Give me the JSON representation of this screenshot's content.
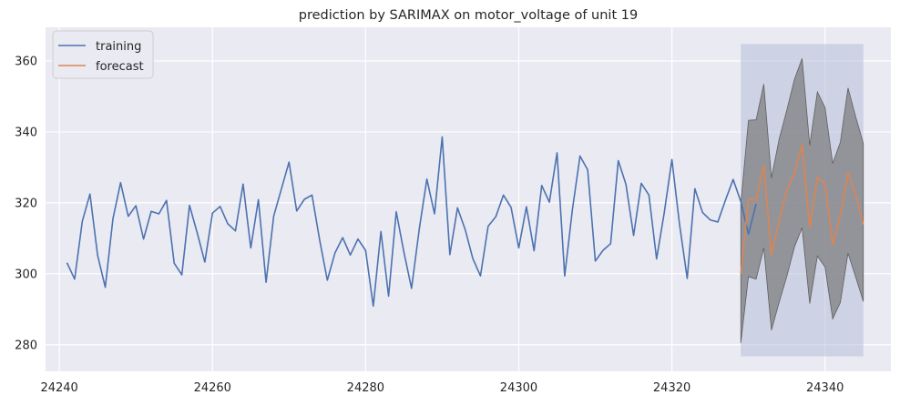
{
  "chart_data": {
    "type": "line",
    "title": "prediction by SARIMAX on motor_voltage of unit 19",
    "xlabel": "",
    "ylabel": "",
    "xlim": [
      24238.2,
      24348.6
    ],
    "ylim": [
      272.5,
      369.5
    ],
    "x_ticks": [
      24240,
      24260,
      24280,
      24300,
      24320,
      24340
    ],
    "y_ticks": [
      280,
      300,
      320,
      340,
      360
    ],
    "grid": true,
    "legend_position": "top-left",
    "colors": {
      "background": "#EAEAF2",
      "grid": "#FFFFFF",
      "training": "#4C72B0",
      "forecast": "#DD8452",
      "band": "#7F7F7F",
      "highlight": "#B4BFDA"
    },
    "highlight_region": {
      "x": [
        24329,
        24345
      ],
      "y": [
        276.7,
        364.8
      ]
    },
    "series": [
      {
        "name": "training",
        "x_start": 24241,
        "values": [
          303.1,
          298.5,
          314.8,
          322.5,
          305.2,
          296.2,
          315.5,
          325.7,
          316.2,
          319.2,
          309.8,
          317.6,
          316.9,
          320.7,
          303.0,
          299.7,
          319.3,
          311.6,
          303.3,
          317.1,
          319.0,
          314.1,
          312.1,
          325.3,
          307.3,
          320.9,
          297.6,
          316.3,
          323.9,
          331.5,
          317.7,
          321.0,
          322.2,
          309.5,
          298.2,
          305.9,
          310.2,
          305.3,
          309.8,
          306.6,
          290.9,
          311.9,
          293.7,
          317.5,
          306.1,
          295.9,
          312.5,
          326.7,
          316.9,
          338.6,
          305.4,
          318.6,
          312.5,
          304.3,
          299.4,
          313.4,
          316.1,
          322.2,
          318.7,
          307.3,
          318.9,
          306.5,
          324.9,
          320.2,
          334.1,
          299.4,
          318.0,
          333.2,
          329.3,
          303.6,
          306.6,
          308.5,
          331.9,
          325.2,
          310.8,
          325.5,
          322.2,
          304.2,
          317.2,
          332.2,
          313.9,
          298.7,
          324.0,
          317.3,
          315.2,
          314.6,
          320.8,
          326.6,
          320.4,
          311.2,
          319.7
        ]
      },
      {
        "name": "forecast",
        "x_start": 24329,
        "values": [
          300.0,
          321.0,
          320.8,
          330.6,
          305.3,
          314.9,
          323.5,
          328.5,
          336.3,
          313.0,
          327.2,
          325.4,
          308.2,
          316.4,
          328.6,
          322.2,
          313.9
        ],
        "lower": [
          280.5,
          299.2,
          298.5,
          307.3,
          284.1,
          291.9,
          299.2,
          307.5,
          313.0,
          291.6,
          305.0,
          301.9,
          287.3,
          291.9,
          305.8,
          299.1,
          292.2
        ],
        "upper": [
          319.8,
          343.3,
          343.4,
          353.5,
          327.0,
          337.9,
          346.1,
          354.8,
          360.7,
          336.2,
          351.3,
          346.9,
          331.1,
          337.1,
          352.4,
          344.3,
          336.8
        ]
      }
    ]
  }
}
